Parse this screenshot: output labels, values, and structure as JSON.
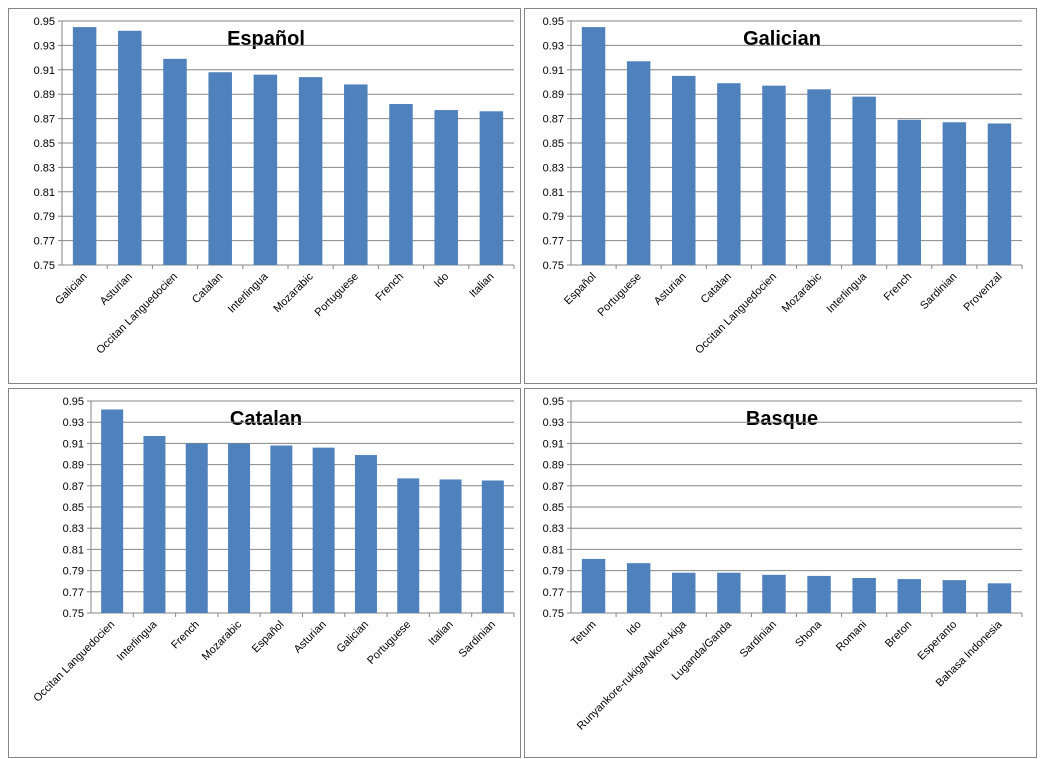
{
  "chart_data": [
    {
      "type": "bar",
      "title": "Español",
      "categories": [
        "Galician",
        "Asturian",
        "Occitan Languedocien",
        "Catalan",
        "Interlingua",
        "Mozarabic",
        "Portuguese",
        "French",
        "Ido",
        "Italian"
      ],
      "values": [
        0.945,
        0.942,
        0.919,
        0.908,
        0.906,
        0.904,
        0.898,
        0.882,
        0.877,
        0.876
      ],
      "xlabel": "",
      "ylabel": "",
      "ylim": [
        0.75,
        0.95
      ],
      "yticks": [
        "0.75",
        "0.77",
        "0.79",
        "0.81",
        "0.83",
        "0.85",
        "0.87",
        "0.89",
        "0.91",
        "0.93",
        "0.95"
      ],
      "grid": true,
      "legend": "none",
      "bar_color": "#4f81bd"
    },
    {
      "type": "bar",
      "title": "Galician",
      "categories": [
        "Español",
        "Portuguese",
        "Asturian",
        "Catalan",
        "Occitan Languedocien",
        "Mozarabic",
        "Interlingua",
        "French",
        "Sardinian",
        "Provenzal"
      ],
      "values": [
        0.945,
        0.917,
        0.905,
        0.899,
        0.897,
        0.894,
        0.888,
        0.869,
        0.867,
        0.866
      ],
      "xlabel": "",
      "ylabel": "",
      "ylim": [
        0.75,
        0.95
      ],
      "yticks": [
        "0.75",
        "0.77",
        "0.79",
        "0.81",
        "0.83",
        "0.85",
        "0.87",
        "0.89",
        "0.91",
        "0.93",
        "0.95"
      ],
      "grid": true,
      "legend": "none",
      "bar_color": "#4f81bd"
    },
    {
      "type": "bar",
      "title": "Catalan",
      "categories": [
        "Occitan Languedocien",
        "Interlingua",
        "French",
        "Mozarabic",
        "Español",
        "Asturian",
        "Galician",
        "Portuguese",
        "Italian",
        "Sardinian"
      ],
      "values": [
        0.942,
        0.917,
        0.91,
        0.91,
        0.908,
        0.906,
        0.899,
        0.877,
        0.876,
        0.875
      ],
      "xlabel": "",
      "ylabel": "",
      "ylim": [
        0.75,
        0.95
      ],
      "yticks": [
        "0.75",
        "0.77",
        "0.79",
        "0.81",
        "0.83",
        "0.85",
        "0.87",
        "0.89",
        "0.91",
        "0.93",
        "0.95"
      ],
      "grid": true,
      "legend": "none",
      "bar_color": "#4f81bd"
    },
    {
      "type": "bar",
      "title": "Basque",
      "categories": [
        "Tetum",
        "Ido",
        "Runyankore-rukiga/Nkore-kiga",
        "Luganda/Ganda",
        "Sardinian",
        "Shona",
        "Romani",
        "Breton",
        "Esperanto",
        "Bahasa Indonesia"
      ],
      "values": [
        0.801,
        0.797,
        0.788,
        0.788,
        0.786,
        0.785,
        0.783,
        0.782,
        0.781,
        0.778
      ],
      "xlabel": "",
      "ylabel": "",
      "ylim": [
        0.75,
        0.95
      ],
      "yticks": [
        "0.75",
        "0.77",
        "0.79",
        "0.81",
        "0.83",
        "0.85",
        "0.87",
        "0.89",
        "0.91",
        "0.93",
        "0.95"
      ],
      "grid": true,
      "legend": "none",
      "bar_color": "#4f81bd"
    }
  ]
}
